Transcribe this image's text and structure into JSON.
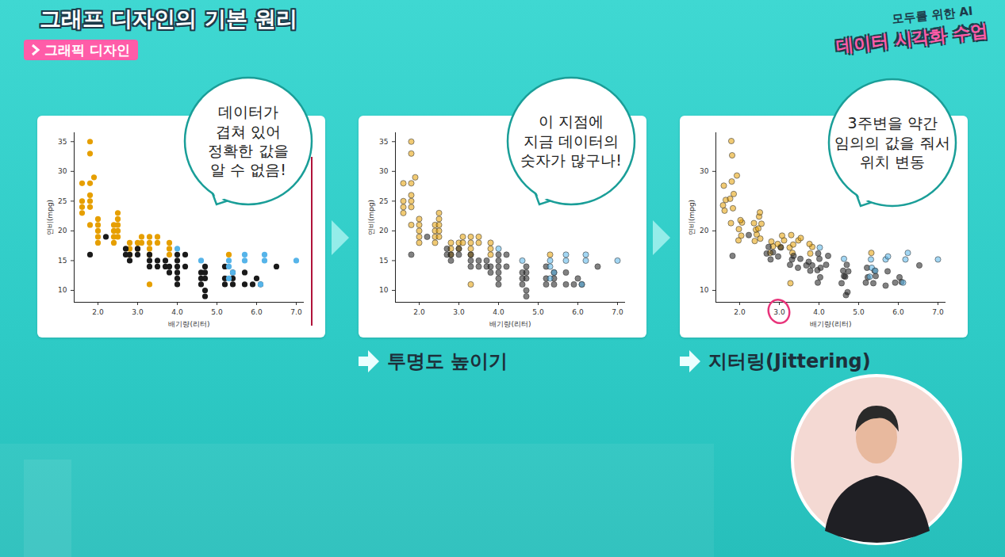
{
  "header": {
    "title": "그래프 디자인의 기본 원리",
    "tag": "그래픽 디자인",
    "brand": [
      "모두를 위한 AI",
      "데이터 시각화 수업"
    ]
  },
  "chart_data": [
    {
      "type": "scatter",
      "annotation": "데이터가\n겹쳐 있어\n정확한 값을\n알 수 없음!",
      "x_label": "배기량(리터)",
      "y_label": "연비(mpg)",
      "xlim": [
        1.4,
        7.2
      ],
      "ylim": [
        8,
        36.5
      ],
      "xticks": [
        2,
        3,
        4,
        5,
        6,
        7
      ],
      "yticks": [
        10,
        15,
        20,
        25,
        30,
        35
      ],
      "grid": false,
      "series": [
        {
          "color": "#e69f00",
          "x": [
            1.6,
            1.6,
            1.6,
            1.6,
            1.8,
            1.8,
            1.8,
            1.8,
            1.8,
            1.8,
            1.8,
            1.9,
            2.0,
            2.0,
            2.0,
            2.0,
            2.0,
            2.4,
            2.4,
            2.4,
            2.4,
            2.5,
            2.5,
            2.5,
            2.5,
            2.5,
            2.8,
            2.8,
            2.8,
            3.0,
            3.0,
            3.1,
            3.1,
            3.3,
            3.3,
            3.3,
            3.3,
            3.3,
            3.5,
            3.5,
            3.8,
            3.8,
            3.8,
            5.3
          ],
          "y": [
            23,
            24,
            25,
            28,
            21,
            24,
            25,
            26,
            28,
            33,
            35,
            29,
            18,
            19,
            20,
            21,
            22,
            18,
            19,
            20,
            21,
            19,
            20,
            21,
            22,
            23,
            16,
            17,
            18,
            17,
            18,
            18,
            19,
            11,
            16,
            17,
            18,
            19,
            18,
            19,
            16,
            17,
            18,
            16
          ]
        },
        {
          "color": "#1a1a1a",
          "x": [
            1.8,
            2.2,
            2.7,
            2.7,
            2.8,
            2.8,
            3.0,
            3.0,
            3.3,
            3.3,
            3.3,
            3.5,
            3.5,
            3.7,
            3.7,
            3.8,
            3.8,
            4.0,
            4.0,
            4.0,
            4.0,
            4.0,
            4.0,
            4.2,
            4.2,
            4.6,
            4.6,
            4.6,
            4.7,
            4.7,
            4.7,
            4.7,
            4.7,
            5.2,
            5.2,
            5.2,
            5.4,
            5.4,
            5.4,
            5.7,
            5.7,
            5.9,
            6.0,
            6.1,
            6.5
          ],
          "y": [
            16,
            19,
            16,
            17,
            15,
            16,
            16,
            17,
            14,
            15,
            16,
            14,
            15,
            14,
            15,
            13,
            14,
            11,
            12,
            13,
            14,
            15,
            16,
            14,
            16,
            11,
            12,
            13,
            9,
            10,
            12,
            13,
            14,
            11,
            12,
            14,
            11,
            12,
            13,
            11,
            13,
            11,
            12,
            11,
            14
          ]
        },
        {
          "color": "#56b4e9",
          "x": [
            4.0,
            4.6,
            5.3,
            5.3,
            5.3,
            5.4,
            5.7,
            5.7,
            6.1,
            6.2,
            6.2,
            7.0
          ],
          "y": [
            17,
            15,
            12,
            14,
            15,
            13,
            15,
            16,
            11,
            15,
            16,
            15
          ]
        }
      ]
    },
    {
      "type": "scatter",
      "annotation": "이 지점에\n지금 데이터의\n숫자가 많구나!",
      "caption": "투명도 높이기",
      "x_label": "배기량(리터)",
      "y_label": "연비(mpg)",
      "xlim": [
        1.4,
        7.2
      ],
      "ylim": [
        8,
        36.5
      ],
      "xticks": [
        2,
        3,
        4,
        5,
        6,
        7
      ],
      "yticks": [
        10,
        15,
        20,
        25,
        30,
        35
      ],
      "grid": false,
      "series": [
        {
          "color": "#e69f00",
          "x": [
            1.6,
            1.6,
            1.6,
            1.6,
            1.8,
            1.8,
            1.8,
            1.8,
            1.8,
            1.8,
            1.8,
            1.9,
            2.0,
            2.0,
            2.0,
            2.0,
            2.0,
            2.4,
            2.4,
            2.4,
            2.4,
            2.5,
            2.5,
            2.5,
            2.5,
            2.5,
            2.8,
            2.8,
            2.8,
            3.0,
            3.0,
            3.1,
            3.1,
            3.3,
            3.3,
            3.3,
            3.3,
            3.3,
            3.5,
            3.5,
            3.8,
            3.8,
            3.8,
            5.3
          ],
          "y": [
            23,
            24,
            25,
            28,
            21,
            24,
            25,
            26,
            28,
            33,
            35,
            29,
            18,
            19,
            20,
            21,
            22,
            18,
            19,
            20,
            21,
            19,
            20,
            21,
            22,
            23,
            16,
            17,
            18,
            17,
            18,
            18,
            19,
            11,
            16,
            17,
            18,
            19,
            18,
            19,
            16,
            17,
            18,
            16
          ]
        },
        {
          "color": "#1a1a1a",
          "x": [
            1.8,
            2.2,
            2.7,
            2.7,
            2.8,
            2.8,
            3.0,
            3.0,
            3.3,
            3.3,
            3.3,
            3.5,
            3.5,
            3.7,
            3.7,
            3.8,
            3.8,
            4.0,
            4.0,
            4.0,
            4.0,
            4.0,
            4.0,
            4.2,
            4.2,
            4.6,
            4.6,
            4.6,
            4.7,
            4.7,
            4.7,
            4.7,
            4.7,
            5.2,
            5.2,
            5.2,
            5.4,
            5.4,
            5.4,
            5.7,
            5.7,
            5.9,
            6.0,
            6.1,
            6.5
          ],
          "y": [
            16,
            19,
            16,
            17,
            15,
            16,
            16,
            17,
            14,
            15,
            16,
            14,
            15,
            14,
            15,
            13,
            14,
            11,
            12,
            13,
            14,
            15,
            16,
            14,
            16,
            11,
            12,
            13,
            9,
            10,
            12,
            13,
            14,
            11,
            12,
            14,
            11,
            12,
            13,
            11,
            13,
            11,
            12,
            11,
            14
          ]
        },
        {
          "color": "#56b4e9",
          "x": [
            4.0,
            4.6,
            5.3,
            5.3,
            5.3,
            5.4,
            5.7,
            5.7,
            6.1,
            6.2,
            6.2,
            7.0
          ],
          "y": [
            17,
            15,
            12,
            14,
            15,
            13,
            15,
            16,
            11,
            15,
            16,
            15
          ]
        }
      ]
    },
    {
      "type": "scatter",
      "annotation": "3주변을 약간\n임의의 값을 줘서\n위치 변동",
      "caption": "지터링(Jittering)",
      "x_label": "배기량(리터)",
      "y_label": "연비(mpg)",
      "xlim": [
        1.4,
        7.2
      ],
      "ylim": [
        8,
        36.5
      ],
      "xticks": [
        2,
        3,
        4,
        5,
        6,
        7
      ],
      "yticks": [
        10,
        20,
        30
      ],
      "grid": false,
      "series": [
        {
          "color": "#e69f00",
          "x": [
            1.62,
            1.58,
            1.65,
            1.6,
            1.78,
            1.83,
            1.76,
            1.85,
            1.8,
            1.81,
            1.79,
            1.93,
            1.97,
            2.04,
            1.98,
            2.06,
            2.02,
            2.38,
            2.43,
            2.41,
            2.36,
            2.52,
            2.47,
            2.55,
            2.49,
            2.51,
            2.77,
            2.84,
            2.8,
            3.03,
            2.96,
            3.12,
            3.07,
            3.28,
            3.33,
            3.26,
            3.35,
            3.3,
            3.48,
            3.54,
            3.78,
            3.83,
            3.76,
            5.32
          ],
          "y": [
            23.4,
            24.3,
            25.2,
            27.6,
            21.3,
            23.8,
            25.4,
            26.2,
            28.3,
            32.7,
            35.1,
            29.3,
            18.4,
            19.2,
            20.3,
            21.4,
            21.8,
            18.3,
            19.4,
            20.2,
            21.3,
            18.7,
            20.4,
            21.2,
            22.4,
            23.1,
            16.3,
            17.4,
            18.2,
            17.3,
            17.8,
            18.4,
            19.2,
            11.2,
            16.3,
            17.2,
            17.7,
            19.3,
            18.4,
            18.8,
            16.2,
            17.3,
            17.8,
            16.3
          ]
        },
        {
          "color": "#1a1a1a",
          "x": [
            1.82,
            2.23,
            2.68,
            2.73,
            2.78,
            2.84,
            2.97,
            3.04,
            3.27,
            3.32,
            3.36,
            3.47,
            3.53,
            3.68,
            3.74,
            3.78,
            3.83,
            3.97,
            4.03,
            3.96,
            4.04,
            4.01,
            3.98,
            4.18,
            4.23,
            4.57,
            4.63,
            4.61,
            4.68,
            4.72,
            4.66,
            4.74,
            4.7,
            5.18,
            5.23,
            5.21,
            5.37,
            5.43,
            5.4,
            5.68,
            5.73,
            5.92,
            6.03,
            6.08,
            6.53
          ],
          "y": [
            15.8,
            19.3,
            16.2,
            17.3,
            15.2,
            16.4,
            15.7,
            17.2,
            14.3,
            15.2,
            15.8,
            13.8,
            15.3,
            14.2,
            14.8,
            13.3,
            14.2,
            11.3,
            12.2,
            13.4,
            13.8,
            15.3,
            16.2,
            14.3,
            15.8,
            11.2,
            12.4,
            13.3,
            9.2,
            9.7,
            12.3,
            13.2,
            14.3,
            11.3,
            12.2,
            13.8,
            11.2,
            12.4,
            13.3,
            10.8,
            13.2,
            11.3,
            12.2,
            11.4,
            14.2
          ]
        },
        {
          "color": "#56b4e9",
          "x": [
            4.02,
            4.63,
            5.28,
            5.33,
            5.31,
            5.42,
            5.68,
            5.74,
            6.12,
            6.18,
            6.24,
            7.0
          ],
          "y": [
            17.2,
            15.3,
            12.3,
            13.8,
            15.2,
            13.3,
            15.2,
            15.7,
            11.3,
            15.2,
            16.3,
            15.2
          ]
        }
      ]
    }
  ]
}
